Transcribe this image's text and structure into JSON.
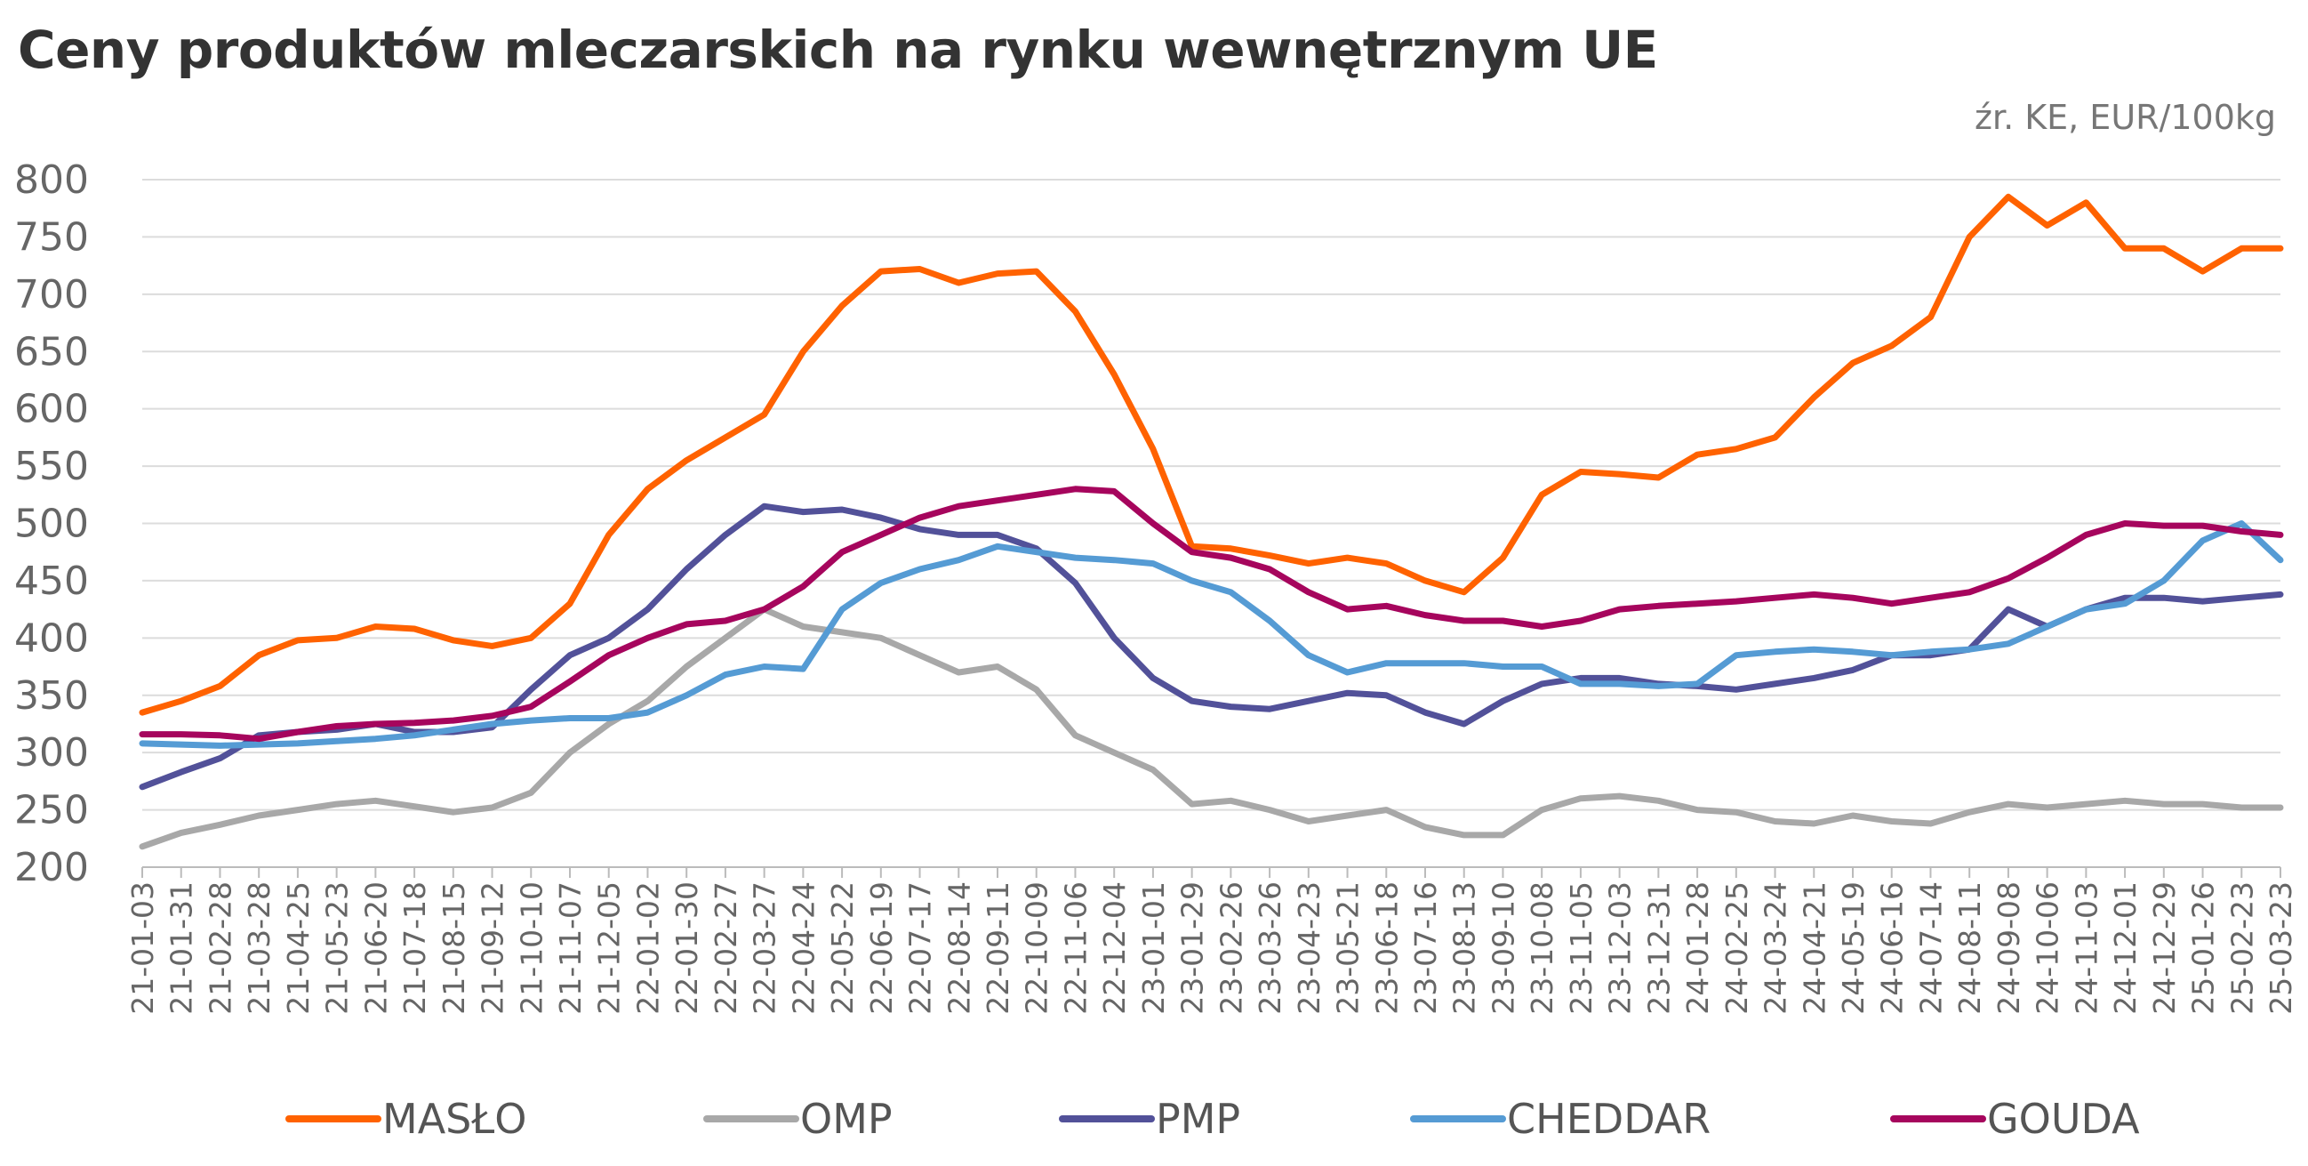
{
  "title": "Ceny produktów mleczarskich na rynku wewnętrznym UE",
  "source_note": "źr. KE, EUR/100kg",
  "chart_data": {
    "type": "line",
    "title": "Ceny produktów mleczarskich na rynku wewnętrznym UE",
    "ylim": [
      200,
      800
    ],
    "yticks": [
      200,
      250,
      300,
      350,
      400,
      450,
      500,
      550,
      600,
      650,
      700,
      750,
      800
    ],
    "grid": true,
    "legend_position": "bottom",
    "x_tick_labels": [
      "21-01-03",
      "21-01-31",
      "21-02-28",
      "21-03-28",
      "21-04-25",
      "21-05-23",
      "21-06-20",
      "21-07-18",
      "21-08-15",
      "21-09-12",
      "21-10-10",
      "21-11-07",
      "21-12-05",
      "22-01-02",
      "22-01-30",
      "22-02-27",
      "22-03-27",
      "22-04-24",
      "22-05-22",
      "22-06-19",
      "22-07-17",
      "22-08-14",
      "22-09-11",
      "22-10-09",
      "22-11-06",
      "22-12-04",
      "23-01-01",
      "23-01-29",
      "23-02-26",
      "23-03-26",
      "23-04-23",
      "23-05-21",
      "23-06-18",
      "23-07-16",
      "23-08-13",
      "23-09-10",
      "23-10-08",
      "23-11-05",
      "23-12-03",
      "23-12-31",
      "24-01-28",
      "24-02-25",
      "24-03-24",
      "24-04-21",
      "24-05-19",
      "24-06-16",
      "24-07-14",
      "24-08-11",
      "24-09-08",
      "24-10-06",
      "24-11-03",
      "24-12-01",
      "24-12-29",
      "25-01-26",
      "25-02-23",
      "25-03-23"
    ],
    "series": [
      {
        "name": "MASŁO",
        "color": "#FF6200",
        "values": [
          335,
          345,
          358,
          385,
          398,
          400,
          410,
          408,
          398,
          393,
          400,
          430,
          490,
          530,
          555,
          575,
          595,
          650,
          690,
          720,
          722,
          710,
          718,
          720,
          685,
          630,
          565,
          480,
          478,
          472,
          465,
          470,
          465,
          450,
          440,
          470,
          525,
          545,
          543,
          540,
          560,
          565,
          575,
          610,
          640,
          655,
          680,
          750,
          785,
          760,
          780,
          740,
          740,
          720,
          740,
          740
        ]
      },
      {
        "name": "OMP",
        "color": "#A8A8A8",
        "values": [
          218,
          230,
          237,
          245,
          250,
          255,
          258,
          253,
          248,
          252,
          265,
          300,
          325,
          345,
          375,
          400,
          425,
          410,
          405,
          400,
          385,
          370,
          375,
          355,
          315,
          300,
          285,
          255,
          258,
          250,
          240,
          245,
          250,
          235,
          228,
          228,
          250,
          260,
          262,
          258,
          250,
          248,
          240,
          238,
          245,
          240,
          238,
          248,
          255,
          252,
          255,
          258,
          255,
          255,
          252,
          252
        ]
      },
      {
        "name": "PMP",
        "color": "#525199",
        "values": [
          270,
          283,
          295,
          315,
          318,
          320,
          325,
          318,
          318,
          322,
          355,
          385,
          400,
          425,
          460,
          490,
          515,
          510,
          512,
          505,
          495,
          490,
          490,
          478,
          448,
          400,
          365,
          345,
          340,
          338,
          345,
          352,
          350,
          335,
          325,
          345,
          360,
          365,
          365,
          360,
          358,
          355,
          360,
          365,
          372,
          385,
          385,
          390,
          425,
          410,
          425,
          435,
          435,
          432,
          435,
          438
        ]
      },
      {
        "name": "CHEDDAR",
        "color": "#559BD4",
        "values": [
          308,
          307,
          306,
          307,
          308,
          310,
          312,
          315,
          320,
          325,
          328,
          330,
          330,
          335,
          350,
          368,
          375,
          373,
          425,
          448,
          460,
          468,
          480,
          475,
          470,
          468,
          465,
          450,
          440,
          415,
          385,
          370,
          378,
          378,
          378,
          375,
          375,
          360,
          360,
          358,
          360,
          385,
          388,
          390,
          388,
          385,
          388,
          390,
          395,
          410,
          425,
          430,
          450,
          485,
          500,
          468
        ]
      },
      {
        "name": "GOUDA",
        "color": "#A6055D",
        "values": [
          316,
          316,
          315,
          312,
          318,
          323,
          325,
          326,
          328,
          332,
          340,
          362,
          385,
          400,
          412,
          415,
          425,
          445,
          475,
          490,
          505,
          515,
          520,
          525,
          530,
          528,
          500,
          475,
          470,
          460,
          440,
          425,
          428,
          420,
          415,
          415,
          410,
          415,
          425,
          428,
          430,
          432,
          435,
          438,
          435,
          430,
          435,
          440,
          452,
          470,
          490,
          500,
          498,
          498,
          493,
          490
        ]
      }
    ]
  }
}
